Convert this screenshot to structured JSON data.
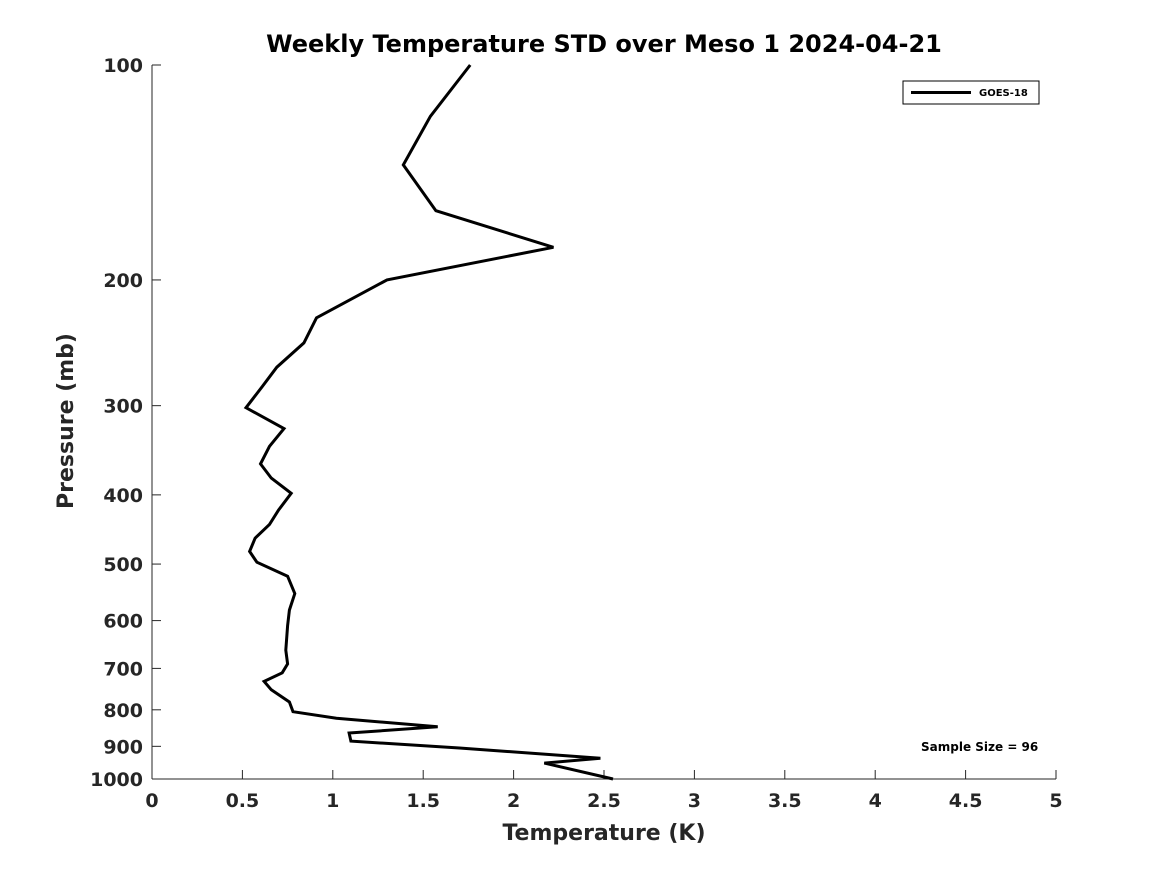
{
  "chart_data": {
    "type": "line",
    "title": "Weekly Temperature STD over Meso 1 2024-04-21",
    "xlabel": "Temperature (K)",
    "ylabel": "Pressure (mb)",
    "xlim": [
      0,
      5
    ],
    "ylim": [
      100,
      1000
    ],
    "yscale": "log",
    "y_reversed": true,
    "xticks": [
      0,
      0.5,
      1,
      1.5,
      2,
      2.5,
      3,
      3.5,
      4,
      4.5,
      5
    ],
    "xtick_labels": [
      "0",
      "0.5",
      "1",
      "1.5",
      "2",
      "2.5",
      "3",
      "3.5",
      "4",
      "4.5",
      "5"
    ],
    "yticks": [
      100,
      200,
      300,
      400,
      500,
      600,
      700,
      800,
      900,
      1000
    ],
    "ytick_labels": [
      "100",
      "200",
      "300",
      "400",
      "500",
      "600",
      "700",
      "800",
      "900",
      "1000"
    ],
    "grid": false,
    "legend_position": "top-right",
    "series": [
      {
        "name": "GOES-18",
        "color": "#000000",
        "x": [
          1.76,
          1.54,
          1.39,
          1.57,
          2.22,
          1.3,
          0.91,
          0.84,
          0.69,
          0.61,
          0.52,
          0.73,
          0.65,
          0.6,
          0.66,
          0.77,
          0.7,
          0.65,
          0.57,
          0.54,
          0.58,
          0.75,
          0.79,
          0.76,
          0.75,
          0.74,
          0.75,
          0.72,
          0.62,
          0.66,
          0.76,
          0.78,
          1.02,
          1.58,
          1.09,
          1.1,
          1.7,
          2.48,
          2.17,
          2.55
        ],
        "y": [
          100,
          118,
          138,
          160,
          180,
          200,
          226,
          245,
          265,
          282,
          302,
          323,
          342,
          362,
          379,
          398,
          420,
          440,
          460,
          480,
          497,
          520,
          550,
          580,
          610,
          660,
          690,
          710,
          730,
          750,
          780,
          805,
          822,
          845,
          862,
          885,
          905,
          935,
          950,
          1000
        ]
      }
    ],
    "annotations": [
      "Sample Size = 96"
    ]
  }
}
